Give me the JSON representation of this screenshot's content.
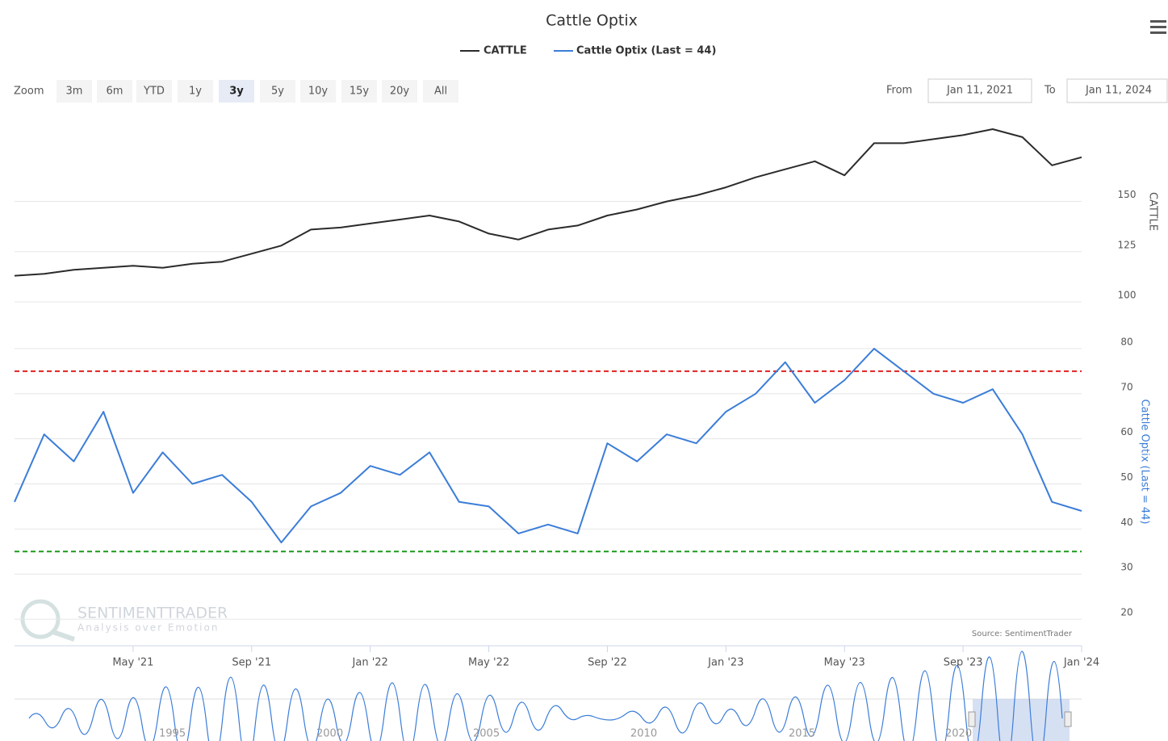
{
  "chart_data": {
    "type": "line",
    "title": "Cattle Optix",
    "x": [
      "2021-01",
      "2021-02",
      "2021-03",
      "2021-04",
      "2021-05",
      "2021-06",
      "2021-07",
      "2021-08",
      "2021-09",
      "2021-10",
      "2021-11",
      "2021-12",
      "2022-01",
      "2022-02",
      "2022-03",
      "2022-04",
      "2022-05",
      "2022-06",
      "2022-07",
      "2022-08",
      "2022-09",
      "2022-10",
      "2022-11",
      "2022-12",
      "2023-01",
      "2023-02",
      "2023-03",
      "2023-04",
      "2023-05",
      "2023-06",
      "2023-07",
      "2023-08",
      "2023-09",
      "2023-10",
      "2023-11",
      "2023-12",
      "2024-01"
    ],
    "xticks": [
      {
        "value": "2021-05",
        "label": "May '21"
      },
      {
        "value": "2021-09",
        "label": "Sep '21"
      },
      {
        "value": "2022-01",
        "label": "Jan '22"
      },
      {
        "value": "2022-05",
        "label": "May '22"
      },
      {
        "value": "2022-09",
        "label": "Sep '22"
      },
      {
        "value": "2023-01",
        "label": "Jan '23"
      },
      {
        "value": "2023-05",
        "label": "May '23"
      },
      {
        "value": "2023-09",
        "label": "Sep '23"
      },
      {
        "value": "2024-01",
        "label": "Jan '24"
      }
    ],
    "series": [
      {
        "name": "CATTLE",
        "color": "#2b2b2b",
        "axis": "y",
        "values": [
          113,
          114,
          116,
          117,
          118,
          117,
          119,
          120,
          124,
          128,
          136,
          137,
          139,
          141,
          143,
          140,
          134,
          131,
          136,
          138,
          143,
          146,
          150,
          153,
          157,
          162,
          166,
          170,
          163,
          179,
          179,
          181,
          183,
          186,
          182,
          168,
          172
        ]
      },
      {
        "name": "Cattle Optix (Last = 44)",
        "color": "#3b7dd8",
        "axis": "y2",
        "values": [
          46,
          61,
          55,
          66,
          48,
          57,
          50,
          52,
          46,
          37,
          45,
          48,
          54,
          52,
          57,
          46,
          45,
          39,
          41,
          39,
          59,
          55,
          61,
          59,
          66,
          70,
          77,
          68,
          73,
          80,
          75,
          70,
          68,
          71,
          61,
          46,
          44
        ]
      }
    ],
    "ylim": [
      100,
      190
    ],
    "yticks": [
      100,
      125,
      150
    ],
    "ylabel": "CATTLE",
    "y2lim": [
      15,
      85
    ],
    "y2ticks": [
      20,
      30,
      40,
      50,
      60,
      70,
      80
    ],
    "y2label": "Cattle Optix (Last = 44)",
    "plot_lines": [
      {
        "value": 75,
        "color": "#e02020"
      },
      {
        "value": 35,
        "color": "#1a9a1a"
      }
    ],
    "grid": true,
    "credits": "Source: SentimentTrader",
    "watermark": {
      "title": "SENTIMENTTRADER",
      "subtitle": "Analysis over Emotion"
    },
    "navigator_labels": [
      "1995",
      "2000",
      "2005",
      "2010",
      "2015",
      "2020"
    ]
  },
  "ui": {
    "zoom_label": "Zoom",
    "buttons": [
      "3m",
      "6m",
      "YTD",
      "1y",
      "3y",
      "5y",
      "10y",
      "15y",
      "20y",
      "All"
    ],
    "selected": "3y",
    "from_label": "From",
    "from": "Jan 11, 2021",
    "to_label": "To",
    "to": "Jan 11, 2024"
  }
}
